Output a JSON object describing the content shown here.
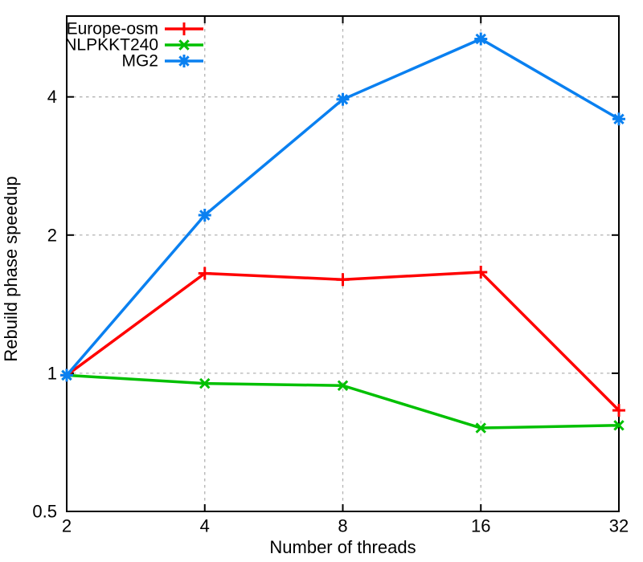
{
  "chart_data": {
    "type": "line",
    "title": "",
    "xlabel": "Number of threads",
    "ylabel": "Rebuild phase speedup",
    "xscale": "log2",
    "yscale": "log2",
    "xlim": [
      2,
      32
    ],
    "ylim": [
      0.5,
      6
    ],
    "x": [
      2,
      4,
      8,
      16,
      32
    ],
    "xtick_labels": [
      "2",
      "4",
      "8",
      "16",
      "32"
    ],
    "ytick_values": [
      0.5,
      1,
      2,
      4
    ],
    "ytick_labels": [
      "0.5",
      "1",
      "2",
      "4"
    ],
    "grid": "dashed-gray-at-major-ticks",
    "legend_position": "top-left-inside-no-box",
    "series": [
      {
        "name": "Europe-osm",
        "color": "#ff0000",
        "marker": "plus",
        "values": [
          0.99,
          1.65,
          1.6,
          1.66,
          0.83
        ]
      },
      {
        "name": "NLPKKT240",
        "color": "#00c000",
        "marker": "cross",
        "values": [
          0.99,
          0.95,
          0.94,
          0.76,
          0.77
        ]
      },
      {
        "name": "MG2",
        "color": "#0a80f0",
        "marker": "asterisk",
        "values": [
          0.99,
          2.21,
          3.95,
          5.35,
          3.58
        ]
      }
    ],
    "colors": {
      "border": "#000000",
      "grid": "#b3b3b3",
      "text": "#000000",
      "background": "#ffffff"
    }
  }
}
